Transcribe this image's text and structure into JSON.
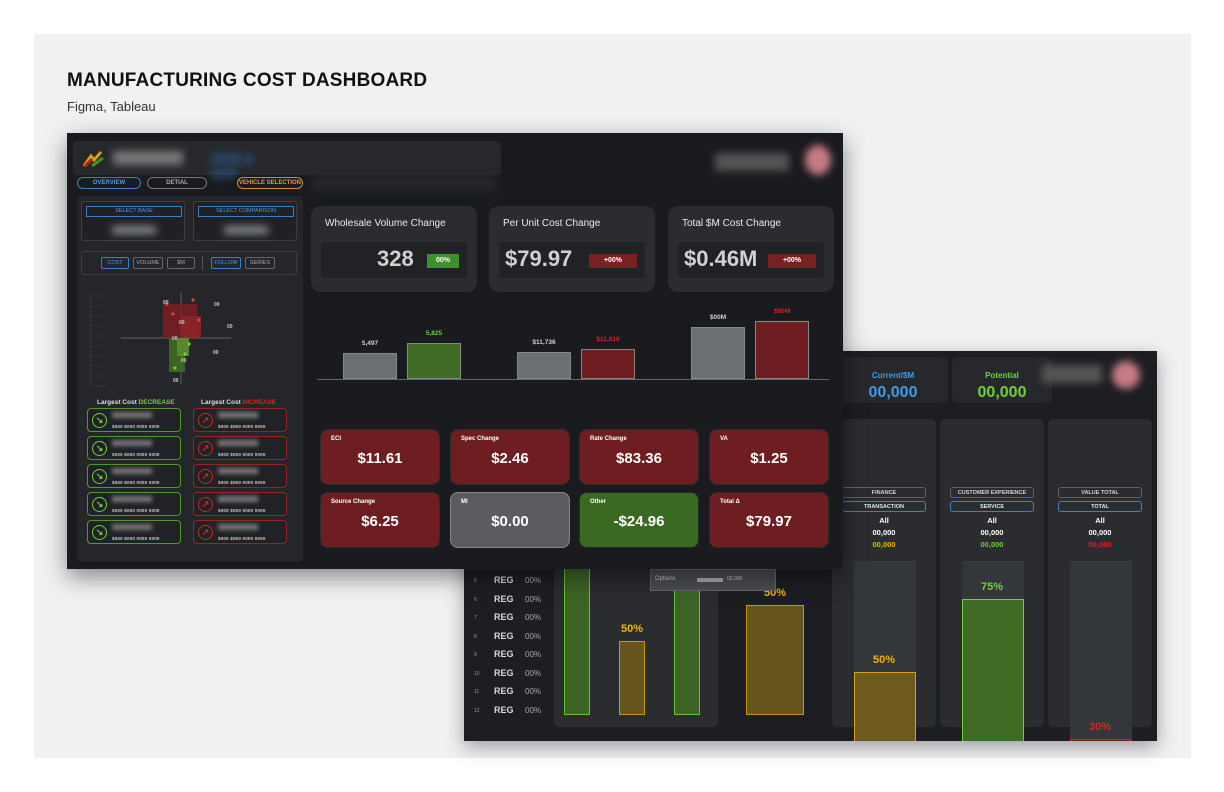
{
  "page": {
    "title": "MANUFACTURING COST DASHBOARD",
    "subtitle": "Figma, Tableau"
  },
  "front": {
    "header": {
      "app_title": "HCM & EGF"
    },
    "nav": {
      "overview": "OVERVIEW",
      "detail": "DETIAL",
      "vehicle_selection": "VEHICLE SELECTION"
    },
    "selectors": {
      "base": "SELECT BASE",
      "comparison": "SELECT COMPARISON"
    },
    "toggles": {
      "cost": "COST",
      "volume": "VOLUME",
      "sm": "$M",
      "follow": "FOLLOW",
      "series": "SERIES"
    },
    "quadrant_labels": [
      "00",
      "00",
      "00",
      "00",
      "00",
      "00",
      "00",
      "00"
    ],
    "largest_decrease": {
      "prefix": "Largest Cost ",
      "word": "DECREASE",
      "color": "#6fd13a"
    },
    "largest_increase": {
      "prefix": "Largest Cost ",
      "word": "INCREASE",
      "color": "#e02020"
    },
    "card_values": "$000   $000   0000   0000",
    "kpis": [
      {
        "title": "Wholesale Volume Change",
        "value": "328",
        "badge": "00%",
        "badge_color": "#3f8f2a"
      },
      {
        "title": "Per Unit Cost Change",
        "value": "$79.97",
        "badge": "+00%",
        "badge_color": "#7a1f22"
      },
      {
        "title": "Total $M Cost Change",
        "value": "$0.46M",
        "badge": "+00%",
        "badge_color": "#7a1f22"
      }
    ],
    "comparison_bars": [
      {
        "label": "5,497",
        "label_color": "#d0d0d0",
        "color": "#6b6e73",
        "value": 5497
      },
      {
        "label": "5,825",
        "label_color": "#6fd13a",
        "color": "#3f6b24",
        "value": 5825
      },
      {
        "label": "$11,736",
        "label_color": "#d0d0d0",
        "color": "#6b6e73",
        "value": 11736
      },
      {
        "label": "$11,816",
        "label_color": "#d02424",
        "color": "#6e1d20",
        "value": 11816
      },
      {
        "label": "$00M",
        "label_color": "#d0d0d0",
        "color": "#6b6e73",
        "value": 0
      },
      {
        "label": "$00M",
        "label_color": "#d02424",
        "color": "#6e1d20",
        "value": 0
      }
    ],
    "tiles": [
      {
        "title": "ECI",
        "value": "$11.61",
        "color": "#6e1d20"
      },
      {
        "title": "Spec Change",
        "value": "$2.46",
        "color": "#6e1d20"
      },
      {
        "title": "Rate Change",
        "value": "$83.36",
        "color": "#6e1d20"
      },
      {
        "title": "VA",
        "value": "$1.25",
        "color": "#6e1d20"
      },
      {
        "title": "Source Change",
        "value": "$6.25",
        "color": "#6e1d20"
      },
      {
        "title": "MI",
        "value": "$0.00",
        "color": "#5a5c61"
      },
      {
        "title": "Other",
        "value": "-$24.96",
        "color": "#3a6a22"
      },
      {
        "title": "Total Δ",
        "value": "$79.97",
        "color": "#6e1d20"
      }
    ]
  },
  "back": {
    "kpi_current": {
      "label": "Current/$M",
      "value": "00,000"
    },
    "kpi_potential": {
      "label": "Potential",
      "value": "00,000"
    },
    "columns": [
      {
        "category": "FINANCE",
        "sub": "TRANSACTION",
        "all": "All",
        "v1": "00,000",
        "v2": "00,000",
        "v2_color": "#f0b400",
        "bar_label": "50%",
        "bar_fill": 0.5,
        "bar_color": "#6e5a1d",
        "bar_border": "#d4a313",
        "label_color": "#f0b400"
      },
      {
        "category": "CUSTOMER EXPERIENCE",
        "sub": "SERVICE",
        "all": "All",
        "v1": "00,000",
        "v2": "00,000",
        "v2_color": "#6fd13a",
        "bar_label": "75%",
        "bar_fill": 0.75,
        "bar_color": "#3f6b24",
        "bar_border": "#6fd13a",
        "label_color": "#6fd13a"
      },
      {
        "category": "VALUE TOTAL",
        "sub": "TOTAL",
        "all": "All",
        "v1": "00,000",
        "v2": "00,000",
        "v2_color": "#e02020",
        "bar_label": "30%",
        "bar_fill": 0.3,
        "bar_color": "#6e1d20",
        "bar_border": "#e02020",
        "label_color": "#e02020"
      }
    ],
    "left_bars": [
      {
        "label": "",
        "fill": 0.95,
        "color": "#3f6b24",
        "border": "#6fd13a"
      },
      {
        "label": "50%",
        "fill": 0.5,
        "color": "#6e5a1d",
        "border": "#d4a313"
      },
      {
        "label": "",
        "fill": 0.95,
        "color": "#3f6b24",
        "border": "#6fd13a"
      },
      {
        "label": "50%",
        "fill": 0.5,
        "color": "#6e5a1d",
        "border": "#d4a313"
      }
    ],
    "option_label": "Options",
    "option_value": "00,000",
    "rows": [
      {
        "n": "6",
        "reg": "REG",
        "pct": "00%"
      },
      {
        "n": "6",
        "reg": "REG",
        "pct": "00%"
      },
      {
        "n": "7",
        "reg": "REG",
        "pct": "00%"
      },
      {
        "n": "8",
        "reg": "REG",
        "pct": "00%"
      },
      {
        "n": "9",
        "reg": "REG",
        "pct": "00%"
      },
      {
        "n": "10",
        "reg": "REG",
        "pct": "00%"
      },
      {
        "n": "11",
        "reg": "REG",
        "pct": "00%"
      },
      {
        "n": "12",
        "reg": "REG",
        "pct": "00%"
      }
    ]
  }
}
